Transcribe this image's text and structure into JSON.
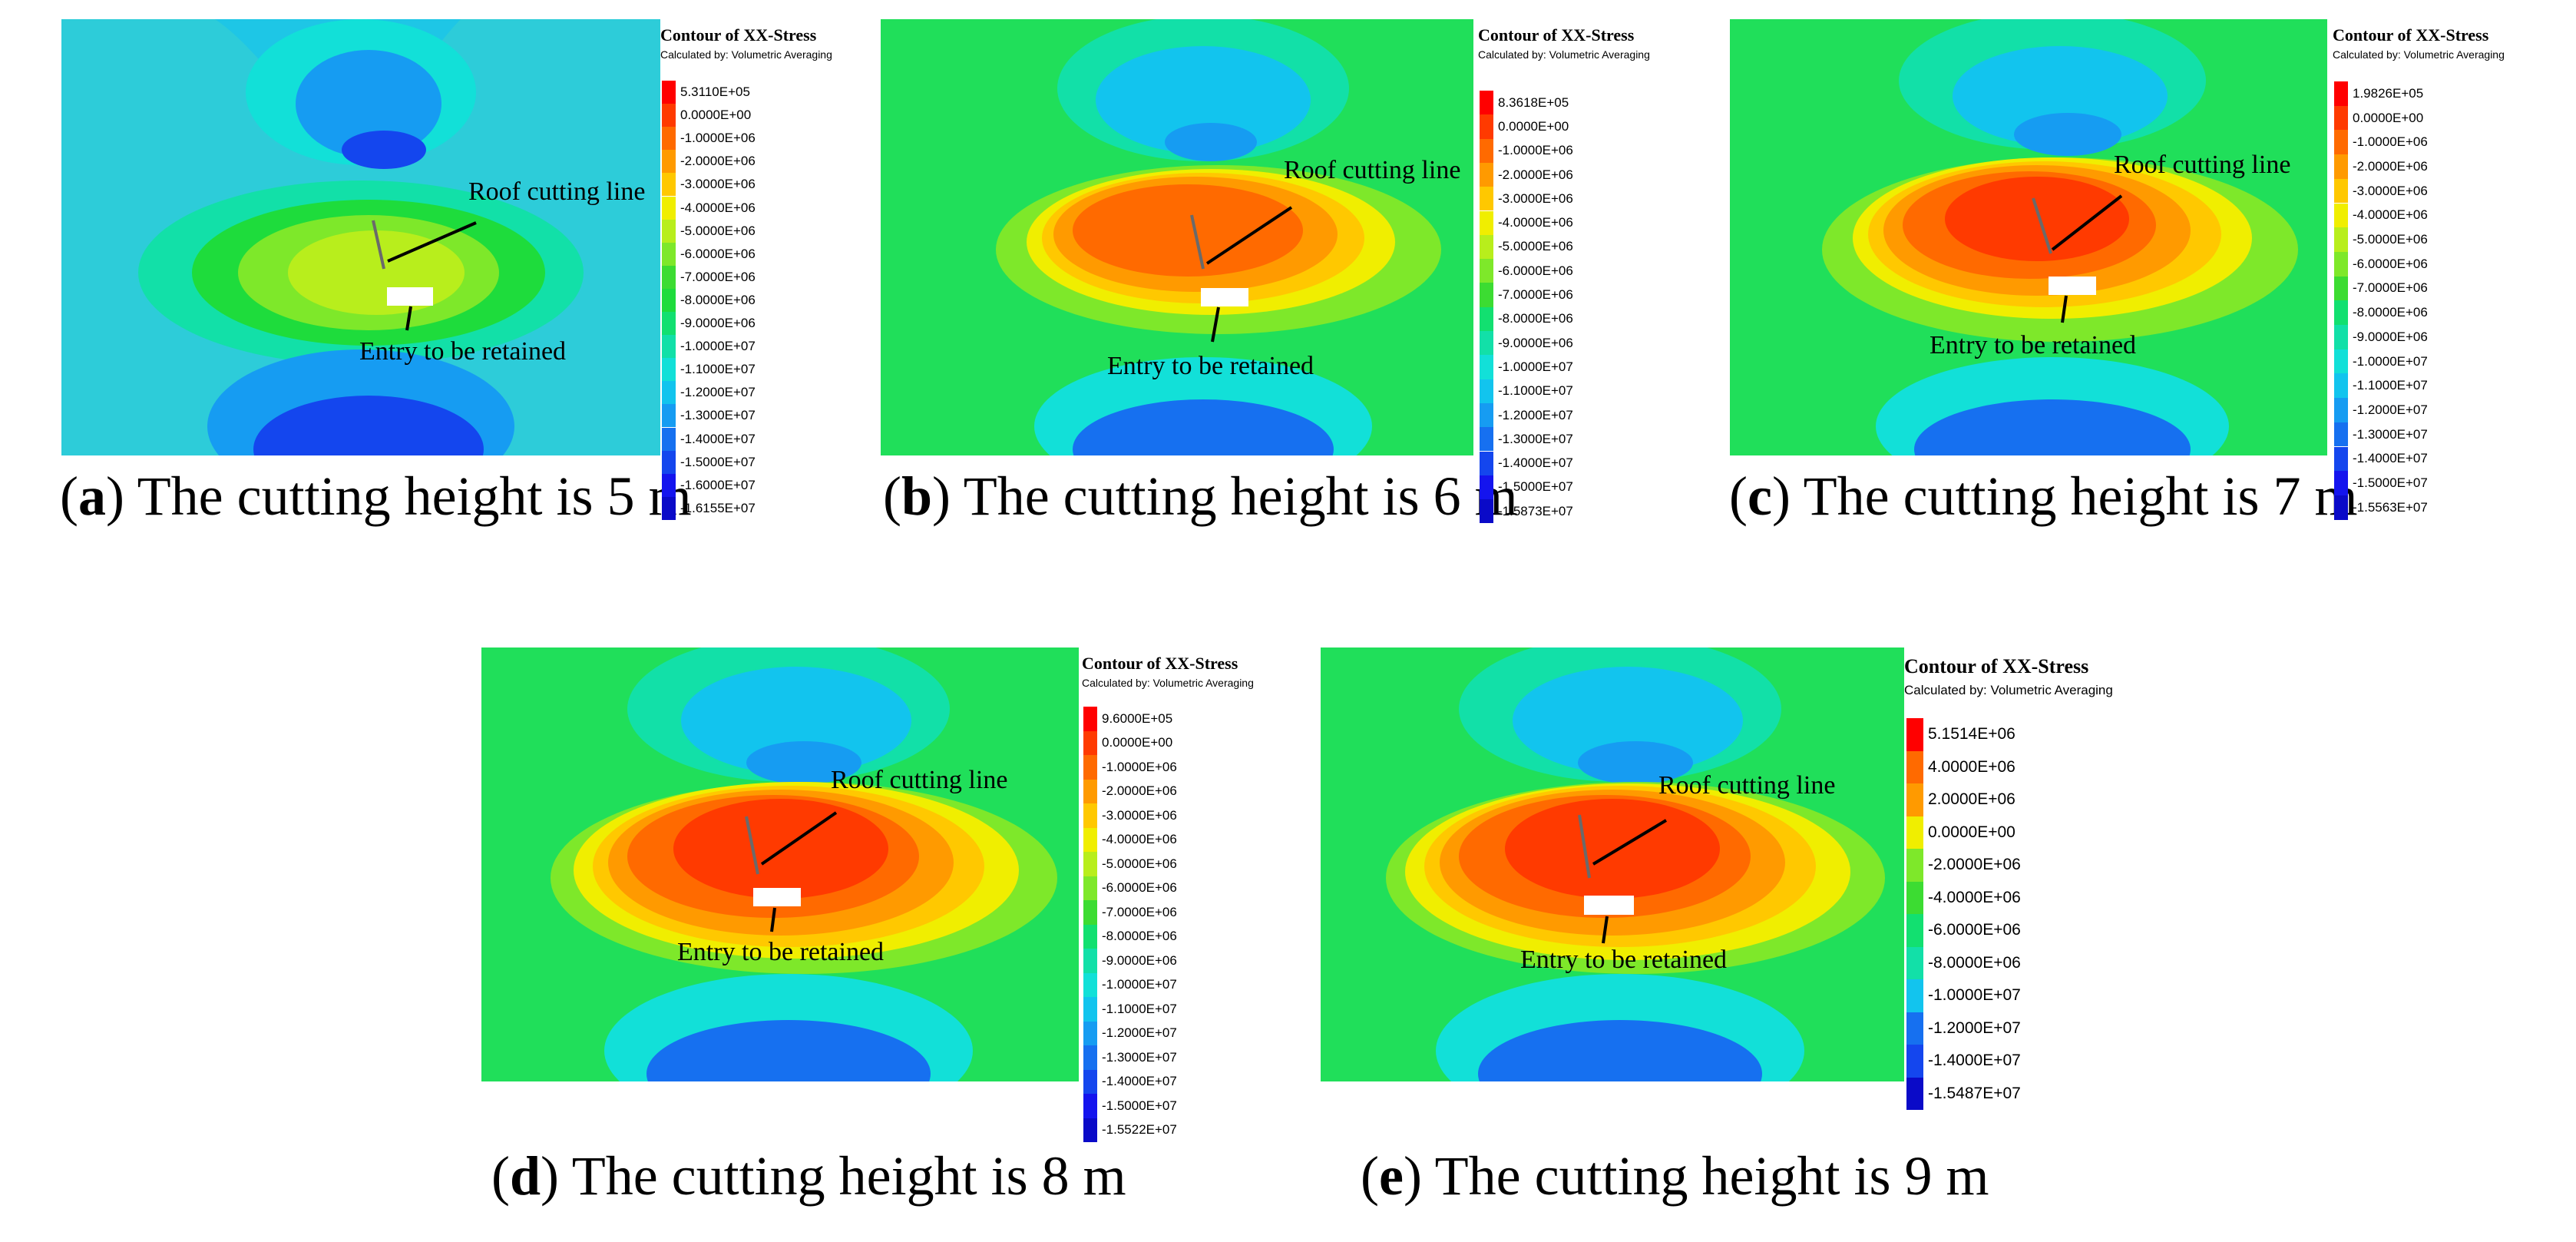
{
  "legend_title": "Contour of XX-Stress",
  "legend_subtitle": "Calculated by: Volumetric Averaging",
  "annotations": {
    "roof": "Roof cutting line",
    "entry": "Entry to be retained"
  },
  "figures": [
    {
      "letter": "a",
      "caption": "The cutting height is 5 m",
      "legend_values": [
        "5.3110E+05",
        "0.0000E+00",
        "-1.0000E+06",
        "-2.0000E+06",
        "-3.0000E+06",
        "-4.0000E+06",
        "-5.0000E+06",
        "-6.0000E+06",
        "-7.0000E+06",
        "-8.0000E+06",
        "-9.0000E+06",
        "-1.0000E+07",
        "-1.1000E+07",
        "-1.2000E+07",
        "-1.3000E+07",
        "-1.4000E+07",
        "-1.5000E+07",
        "-1.6000E+07",
        "-1.6155E+07"
      ]
    },
    {
      "letter": "b",
      "caption": "The cutting height is 6 m",
      "legend_values": [
        "8.3618E+05",
        "0.0000E+00",
        "-1.0000E+06",
        "-2.0000E+06",
        "-3.0000E+06",
        "-4.0000E+06",
        "-5.0000E+06",
        "-6.0000E+06",
        "-7.0000E+06",
        "-8.0000E+06",
        "-9.0000E+06",
        "-1.0000E+07",
        "-1.1000E+07",
        "-1.2000E+07",
        "-1.3000E+07",
        "-1.4000E+07",
        "-1.5000E+07",
        "-1.5873E+07"
      ]
    },
    {
      "letter": "c",
      "caption": "The cutting height is 7 m",
      "legend_values": [
        "1.9826E+05",
        "0.0000E+00",
        "-1.0000E+06",
        "-2.0000E+06",
        "-3.0000E+06",
        "-4.0000E+06",
        "-5.0000E+06",
        "-6.0000E+06",
        "-7.0000E+06",
        "-8.0000E+06",
        "-9.0000E+06",
        "-1.0000E+07",
        "-1.1000E+07",
        "-1.2000E+07",
        "-1.3000E+07",
        "-1.4000E+07",
        "-1.5000E+07",
        "-1.5563E+07"
      ]
    },
    {
      "letter": "d",
      "caption": "The cutting height is 8 m",
      "legend_values": [
        "9.6000E+05",
        "0.0000E+00",
        "-1.0000E+06",
        "-2.0000E+06",
        "-3.0000E+06",
        "-4.0000E+06",
        "-5.0000E+06",
        "-6.0000E+06",
        "-7.0000E+06",
        "-8.0000E+06",
        "-9.0000E+06",
        "-1.0000E+07",
        "-1.1000E+07",
        "-1.2000E+07",
        "-1.3000E+07",
        "-1.4000E+07",
        "-1.5000E+07",
        "-1.5522E+07"
      ]
    },
    {
      "letter": "e",
      "caption": "The cutting height is 9 m",
      "legend_values": [
        "5.1514E+06",
        "4.0000E+06",
        "2.0000E+06",
        "0.0000E+00",
        "-2.0000E+06",
        "-4.0000E+06",
        "-6.0000E+06",
        "-8.0000E+06",
        "-1.0000E+07",
        "-1.2000E+07",
        "-1.4000E+07",
        "-1.5487E+07"
      ]
    }
  ],
  "colors": {
    "scale": [
      "#ff0000",
      "#ff3a00",
      "#ff6a00",
      "#ff9a00",
      "#ffc800",
      "#f0ee00",
      "#b8ee1c",
      "#7ee82a",
      "#3cdc32",
      "#1edc3c",
      "#12e070",
      "#12e0a8",
      "#12e0d8",
      "#12c4ee",
      "#169cf2",
      "#1670f0",
      "#1446ee",
      "#1414ee",
      "#0a0ac8"
    ]
  }
}
